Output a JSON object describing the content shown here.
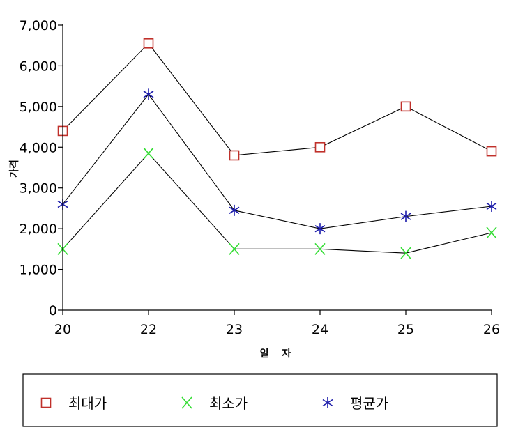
{
  "chart_data": {
    "type": "line",
    "categories": [
      "20",
      "22",
      "23",
      "24",
      "25",
      "26"
    ],
    "xlabel": "일 자",
    "ylabel": "가격",
    "ylim": [
      0,
      7000
    ],
    "yticks": [
      0,
      1000,
      2000,
      3000,
      4000,
      5000,
      6000,
      7000
    ],
    "ytick_labels": [
      "0",
      "1,000",
      "2,000",
      "3,000",
      "4,000",
      "5,000",
      "6,000",
      "7,000"
    ],
    "grid": false,
    "legend_position": "bottom",
    "series": [
      {
        "name": "최대가",
        "marker": "square",
        "marker_color": "#c0302a",
        "line_color": "#000000",
        "values": [
          4400,
          6550,
          3800,
          4000,
          5000,
          3900
        ]
      },
      {
        "name": "최소가",
        "marker": "x",
        "marker_color": "#33dd33",
        "line_color": "#000000",
        "values": [
          1500,
          3850,
          1500,
          1500,
          1400,
          1900
        ]
      },
      {
        "name": "평균가",
        "marker": "asterisk",
        "marker_color": "#1a1aaa",
        "line_color": "#000000",
        "values": [
          2600,
          5300,
          2450,
          2000,
          2300,
          2550
        ]
      }
    ]
  }
}
